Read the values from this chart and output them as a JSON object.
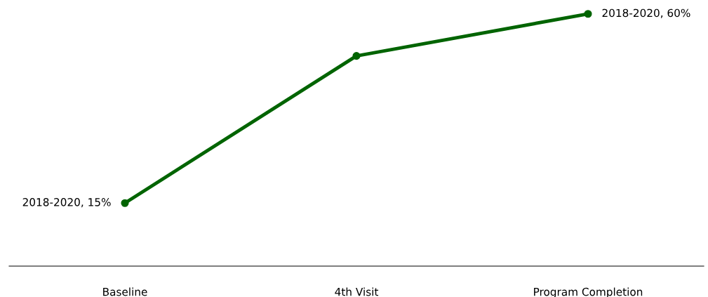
{
  "chart_data": {
    "type": "line",
    "categories": [
      "Baseline",
      "4th Visit",
      "Program Completion"
    ],
    "series": [
      {
        "color": "#006400",
        "values": [
          15,
          50,
          60
        ],
        "value_labels": [
          "2018-2020, 15%",
          null,
          "2018-2020, 60%"
        ]
      }
    ],
    "tick_labels": "x",
    "marker": "circle",
    "line_style": "solid"
  }
}
